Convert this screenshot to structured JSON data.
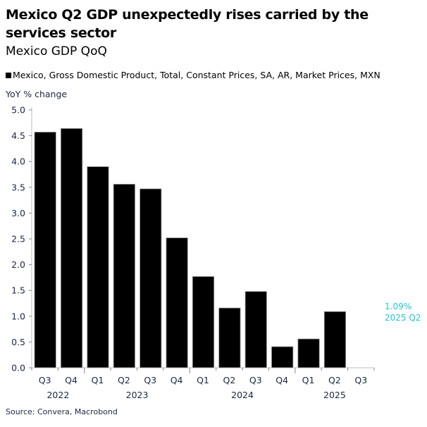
{
  "chart_data": {
    "type": "bar",
    "title": "Mexico Q2 GDP unexpectedly rises carried by the services sector",
    "subtitle": "Mexico GDP QoQ",
    "legend": "Mexico, Gross Domestic Product, Total, Constant Prices, SA, AR, Market Prices, MXN",
    "legend_placement": "top-left",
    "ylabel": "YoY % change",
    "xlabel": "",
    "ylim": [
      0,
      5
    ],
    "yticks": [
      "0.0",
      "0.5",
      "1.0",
      "1.5",
      "2.0",
      "2.5",
      "3.0",
      "3.5",
      "4.0",
      "4.5",
      "5.0"
    ],
    "grid": false,
    "categories": [
      "Q3",
      "Q4",
      "Q1",
      "Q2",
      "Q3",
      "Q4",
      "Q1",
      "Q2",
      "Q3",
      "Q4",
      "Q1",
      "Q2",
      "Q3"
    ],
    "years": [
      {
        "label": "2022",
        "from": 0,
        "to": 1
      },
      {
        "label": "2023",
        "from": 2,
        "to": 5
      },
      {
        "label": "2024",
        "from": 6,
        "to": 9
      },
      {
        "label": "2025",
        "from": 10,
        "to": 12
      }
    ],
    "series": [
      {
        "values": [
          4.57,
          4.64,
          3.9,
          3.56,
          3.47,
          2.52,
          1.77,
          1.16,
          1.48,
          0.41,
          0.56,
          1.09,
          null
        ],
        "color": "#000000"
      }
    ],
    "annotation": {
      "value": "1.09%",
      "period": "2025 Q2",
      "color": "#22c7c7"
    },
    "source": "Source: Convera, Macrobond"
  }
}
